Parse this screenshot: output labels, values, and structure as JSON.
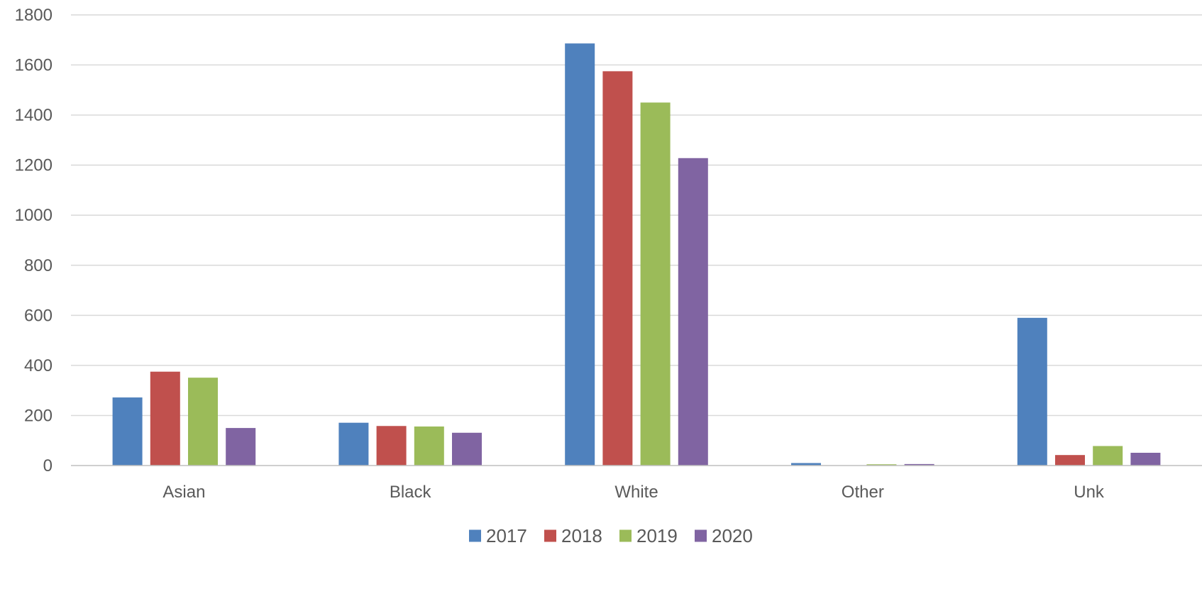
{
  "chart_data": {
    "type": "bar",
    "title": "",
    "xlabel": "",
    "ylabel": "",
    "categories": [
      "Asian",
      "Black",
      "White",
      "Other",
      "Unk"
    ],
    "ylim": [
      0,
      1800
    ],
    "yticks": [
      0,
      200,
      400,
      600,
      800,
      1000,
      1200,
      1400,
      1600,
      1800
    ],
    "grid": true,
    "legend_position": "bottom",
    "series": [
      {
        "name": "2017",
        "color": "#4F81BD",
        "values": [
          272,
          171,
          1686,
          10,
          590
        ]
      },
      {
        "name": "2018",
        "color": "#C0504D",
        "values": [
          375,
          158,
          1575,
          0,
          42
        ]
      },
      {
        "name": "2019",
        "color": "#9BBB59",
        "values": [
          351,
          156,
          1450,
          5,
          78
        ]
      },
      {
        "name": "2020",
        "color": "#8064A2",
        "values": [
          150,
          131,
          1228,
          6,
          51
        ]
      }
    ]
  }
}
